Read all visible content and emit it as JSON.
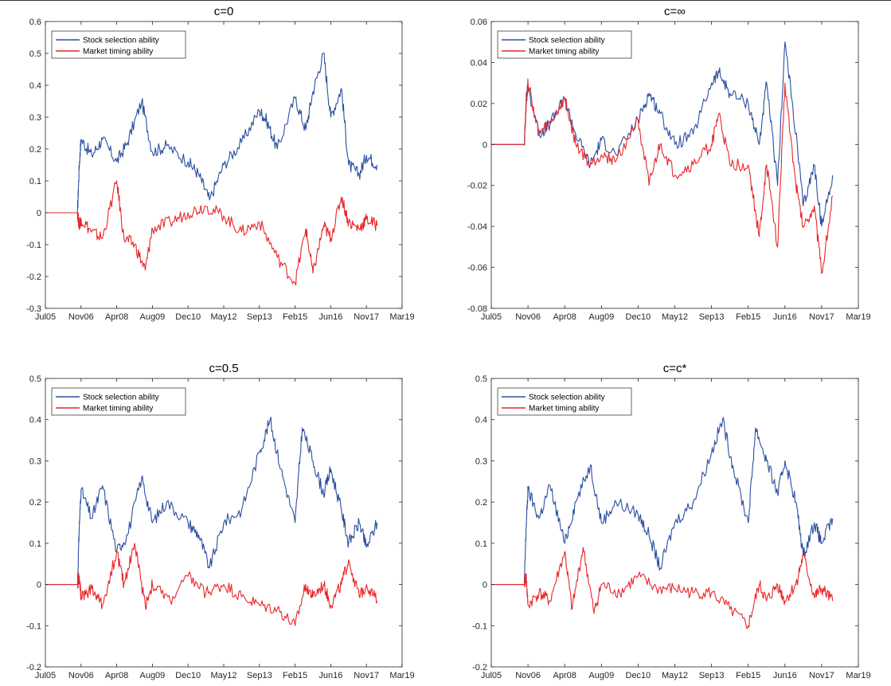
{
  "chart_data": [
    {
      "type": "line",
      "title": "c=0",
      "xlabel": "",
      "ylabel": "",
      "xticks": [
        "Jul05",
        "Nov06",
        "Apr08",
        "Aug09",
        "Dec10",
        "May12",
        "Sep13",
        "Feb15",
        "Jun16",
        "Nov17",
        "Mar19"
      ],
      "xlim": [
        0,
        10
      ],
      "ylim": [
        -0.3,
        0.6
      ],
      "yticks": [
        -0.3,
        -0.2,
        -0.1,
        0,
        0.1,
        0.2,
        0.3,
        0.4,
        0.5,
        0.6
      ],
      "ytick_labels": [
        "-0.3",
        "-0.2",
        "-0.1",
        "0",
        "0.1",
        "0.2",
        "0.3",
        "0.4",
        "0.5",
        "0.6"
      ],
      "legend_position": "top-left",
      "series": [
        {
          "name": "Stock selection ability",
          "color": "#2b4fa0",
          "x": [
            0,
            0.9,
            0.95,
            1.0,
            1.3,
            1.6,
            2.0,
            2.3,
            2.7,
            3.0,
            3.4,
            4.0,
            4.3,
            4.6,
            5.0,
            5.5,
            6.0,
            6.2,
            6.5,
            7.0,
            7.3,
            7.5,
            7.8,
            8.0,
            8.3,
            8.5,
            8.8,
            9.0,
            9.3
          ],
          "y": [
            0,
            0,
            0.15,
            0.23,
            0.18,
            0.23,
            0.16,
            0.22,
            0.35,
            0.19,
            0.21,
            0.16,
            0.12,
            0.04,
            0.15,
            0.22,
            0.32,
            0.29,
            0.2,
            0.36,
            0.26,
            0.38,
            0.5,
            0.3,
            0.39,
            0.15,
            0.12,
            0.18,
            0.15
          ]
        },
        {
          "name": "Market timing ability",
          "color": "#e8262a",
          "x": [
            0,
            0.9,
            0.95,
            1.0,
            1.3,
            1.6,
            2.0,
            2.2,
            2.5,
            2.8,
            3.0,
            3.5,
            4.0,
            4.5,
            5.0,
            5.5,
            6.0,
            6.5,
            7.0,
            7.3,
            7.5,
            7.8,
            8.0,
            8.3,
            8.5,
            8.8,
            9.0,
            9.3
          ],
          "y": [
            0,
            0,
            -0.04,
            -0.02,
            -0.06,
            -0.08,
            0.1,
            -0.08,
            -0.1,
            -0.18,
            -0.05,
            -0.03,
            0.0,
            0.02,
            -0.01,
            -0.06,
            -0.03,
            -0.14,
            -0.22,
            -0.05,
            -0.19,
            -0.04,
            -0.08,
            0.05,
            -0.03,
            -0.05,
            -0.02,
            -0.04
          ]
        }
      ]
    },
    {
      "type": "line",
      "title": "c=∞",
      "xlabel": "",
      "ylabel": "",
      "xticks": [
        "Jul05",
        "Nov06",
        "Apr08",
        "Aug09",
        "Dec10",
        "May12",
        "Sep13",
        "Feb15",
        "Jun16",
        "Nov17",
        "Mar19"
      ],
      "xlim": [
        0,
        10
      ],
      "ylim": [
        -0.08,
        0.06
      ],
      "yticks": [
        -0.08,
        -0.06,
        -0.04,
        -0.02,
        0,
        0.02,
        0.04,
        0.06
      ],
      "ytick_labels": [
        "-0.08",
        "-0.06",
        "-0.04",
        "-0.02",
        "0",
        "0.02",
        "0.04",
        "0.06"
      ],
      "legend_position": "top-left",
      "series": [
        {
          "name": "Stock selection ability",
          "color": "#2b4fa0",
          "x": [
            0,
            0.9,
            0.95,
            1.0,
            1.3,
            1.6,
            2.0,
            2.3,
            2.7,
            3.0,
            3.4,
            4.0,
            4.3,
            4.6,
            5.0,
            5.5,
            6.0,
            6.2,
            6.5,
            7.0,
            7.3,
            7.5,
            7.8,
            8.0,
            8.3,
            8.5,
            8.8,
            9.0,
            9.3
          ],
          "y": [
            0,
            0,
            0.022,
            0.028,
            0.005,
            0.01,
            0.022,
            0.005,
            -0.01,
            0.002,
            -0.005,
            0.012,
            0.025,
            0.015,
            0.0,
            0.005,
            0.03,
            0.035,
            0.025,
            0.02,
            0.0,
            0.03,
            -0.02,
            0.05,
            0.005,
            -0.03,
            -0.01,
            -0.04,
            -0.015
          ]
        },
        {
          "name": "Market timing ability",
          "color": "#e8262a",
          "x": [
            0,
            0.9,
            0.95,
            1.0,
            1.3,
            1.6,
            2.0,
            2.3,
            2.7,
            3.0,
            3.4,
            4.0,
            4.3,
            4.6,
            5.0,
            5.5,
            6.0,
            6.2,
            6.5,
            7.0,
            7.3,
            7.5,
            7.8,
            8.0,
            8.3,
            8.5,
            8.8,
            9.0,
            9.3
          ],
          "y": [
            0,
            0,
            0.02,
            0.03,
            0.005,
            0.01,
            0.022,
            0.0,
            -0.01,
            -0.005,
            -0.008,
            0.012,
            -0.02,
            0.0,
            -0.015,
            -0.01,
            0.0,
            0.015,
            -0.01,
            -0.01,
            -0.045,
            -0.01,
            -0.05,
            0.03,
            -0.02,
            -0.04,
            -0.03,
            -0.063,
            -0.025
          ]
        }
      ]
    },
    {
      "type": "line",
      "title": "c=0.5",
      "xlabel": "",
      "ylabel": "",
      "xticks": [
        "Jul05",
        "Nov06",
        "Apr08",
        "Aug09",
        "Dec10",
        "May12",
        "Sep13",
        "Feb15",
        "Jun16",
        "Nov17",
        "Mar19"
      ],
      "xlim": [
        0,
        10
      ],
      "ylim": [
        -0.2,
        0.5
      ],
      "yticks": [
        -0.2,
        -0.1,
        0,
        0.1,
        0.2,
        0.3,
        0.4,
        0.5
      ],
      "ytick_labels": [
        "-0.2",
        "-0.1",
        "0",
        "0.1",
        "0.2",
        "0.3",
        "0.4",
        "0.5"
      ],
      "legend_position": "top-left",
      "series": [
        {
          "name": "Stock selection ability",
          "color": "#2b4fa0",
          "x": [
            0,
            0.9,
            0.95,
            1.0,
            1.3,
            1.6,
            2.0,
            2.3,
            2.7,
            3.0,
            3.4,
            4.0,
            4.3,
            4.6,
            5.0,
            5.5,
            6.0,
            6.3,
            6.6,
            7.0,
            7.2,
            7.5,
            7.8,
            8.0,
            8.3,
            8.5,
            8.8,
            9.0,
            9.3
          ],
          "y": [
            0,
            0,
            0.14,
            0.23,
            0.16,
            0.24,
            0.08,
            0.12,
            0.26,
            0.15,
            0.2,
            0.15,
            0.12,
            0.04,
            0.15,
            0.18,
            0.32,
            0.4,
            0.28,
            0.15,
            0.38,
            0.3,
            0.22,
            0.28,
            0.18,
            0.1,
            0.15,
            0.09,
            0.15
          ]
        },
        {
          "name": "Market timing ability",
          "color": "#e8262a",
          "x": [
            0,
            0.9,
            0.95,
            1.0,
            1.3,
            1.6,
            2.0,
            2.2,
            2.5,
            2.8,
            3.0,
            3.5,
            4.0,
            4.5,
            5.0,
            5.5,
            6.0,
            6.5,
            7.0,
            7.3,
            7.5,
            7.8,
            8.0,
            8.3,
            8.5,
            8.8,
            9.0,
            9.3
          ],
          "y": [
            0,
            0,
            0.02,
            -0.03,
            -0.01,
            -0.05,
            0.08,
            0.0,
            0.1,
            -0.05,
            0.0,
            -0.04,
            0.02,
            -0.02,
            0.0,
            -0.03,
            -0.05,
            -0.06,
            -0.1,
            0.0,
            -0.03,
            0.0,
            -0.05,
            0.0,
            0.06,
            -0.03,
            0.0,
            -0.04
          ]
        }
      ]
    },
    {
      "type": "line",
      "title": "c=c*",
      "xlabel": "",
      "ylabel": "",
      "xticks": [
        "Jul05",
        "Nov06",
        "Apr08",
        "Aug09",
        "Dec10",
        "May12",
        "Sep13",
        "Feb15",
        "Jun16",
        "Nov17",
        "Mar19"
      ],
      "xlim": [
        0,
        10
      ],
      "ylim": [
        -0.2,
        0.5
      ],
      "yticks": [
        -0.2,
        -0.1,
        0,
        0.1,
        0.2,
        0.3,
        0.4,
        0.5
      ],
      "ytick_labels": [
        "-0.2",
        "-0.1",
        "0",
        "0.1",
        "0.2",
        "0.3",
        "0.4",
        "0.5"
      ],
      "legend_position": "top-left",
      "series": [
        {
          "name": "Stock selection ability",
          "color": "#2b4fa0",
          "x": [
            0,
            0.9,
            0.95,
            1.0,
            1.3,
            1.6,
            2.0,
            2.3,
            2.7,
            3.0,
            3.4,
            4.0,
            4.3,
            4.6,
            5.0,
            5.5,
            6.0,
            6.3,
            6.6,
            7.0,
            7.2,
            7.5,
            7.8,
            8.0,
            8.3,
            8.5,
            8.8,
            9.0,
            9.3
          ],
          "y": [
            0,
            0,
            0.14,
            0.23,
            0.16,
            0.24,
            0.1,
            0.2,
            0.29,
            0.15,
            0.2,
            0.17,
            0.12,
            0.04,
            0.15,
            0.2,
            0.32,
            0.4,
            0.28,
            0.15,
            0.38,
            0.3,
            0.22,
            0.3,
            0.2,
            0.07,
            0.15,
            0.1,
            0.16
          ]
        },
        {
          "name": "Market timing ability",
          "color": "#e8262a",
          "x": [
            0,
            0.9,
            0.95,
            1.0,
            1.3,
            1.6,
            2.0,
            2.2,
            2.5,
            2.8,
            3.0,
            3.5,
            4.0,
            4.5,
            5.0,
            5.5,
            6.0,
            6.5,
            7.0,
            7.3,
            7.5,
            7.8,
            8.0,
            8.3,
            8.5,
            8.8,
            9.0,
            9.3
          ],
          "y": [
            0,
            0,
            0.02,
            -0.05,
            -0.02,
            -0.04,
            0.08,
            -0.06,
            0.09,
            -0.07,
            0.0,
            -0.02,
            0.02,
            -0.01,
            -0.01,
            -0.02,
            -0.02,
            -0.06,
            -0.1,
            0.0,
            -0.04,
            0.0,
            -0.04,
            0.0,
            0.07,
            -0.03,
            -0.01,
            -0.04
          ]
        }
      ]
    }
  ]
}
